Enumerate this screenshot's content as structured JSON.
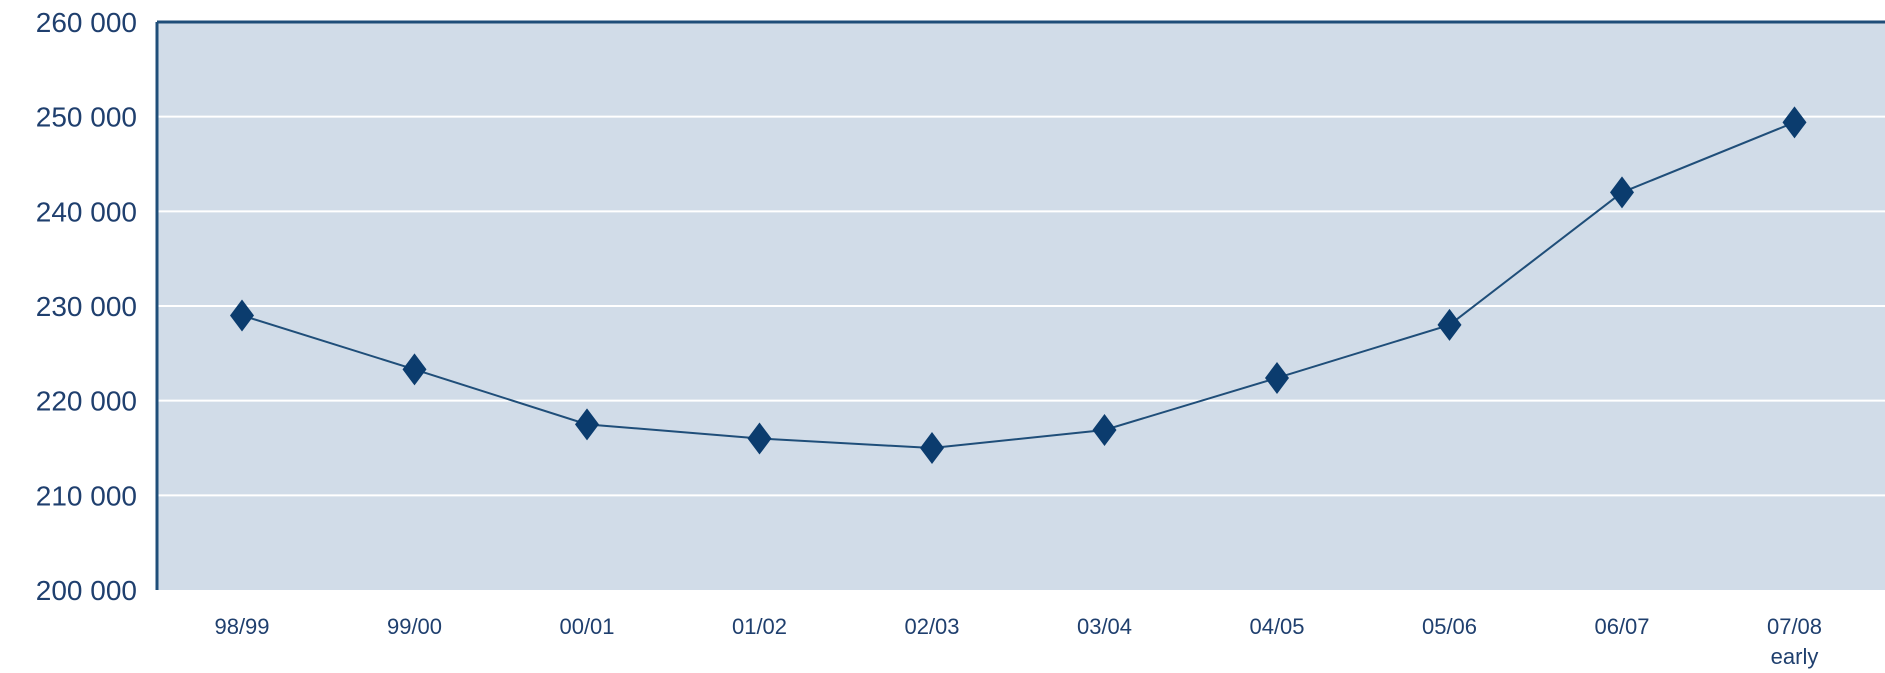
{
  "chart_data": {
    "type": "line",
    "categories": [
      "98/99",
      "99/00",
      "00/01",
      "01/02",
      "02/03",
      "03/04",
      "04/05",
      "05/06",
      "06/07",
      "07/08"
    ],
    "category_sublabels": [
      "",
      "",
      "",
      "",
      "",
      "",
      "",
      "",
      "",
      "early"
    ],
    "values": [
      229000,
      223300,
      217500,
      216000,
      215000,
      216900,
      222400,
      228000,
      242000,
      249400
    ],
    "ylim": [
      200000,
      260000
    ],
    "yticks": [
      200000,
      210000,
      220000,
      230000,
      240000,
      250000,
      260000
    ],
    "ytick_labels": [
      "200 000",
      "210 000",
      "220 000",
      "230 000",
      "240 000",
      "250 000",
      "260 000"
    ],
    "grid": true,
    "colors": {
      "plot_background": "#d1dce8",
      "gridline": "#ffffff",
      "axis": "#1f4e79",
      "line": "#1f4e79",
      "marker": "#0b3c6e",
      "text": "#1f3f6e"
    }
  }
}
